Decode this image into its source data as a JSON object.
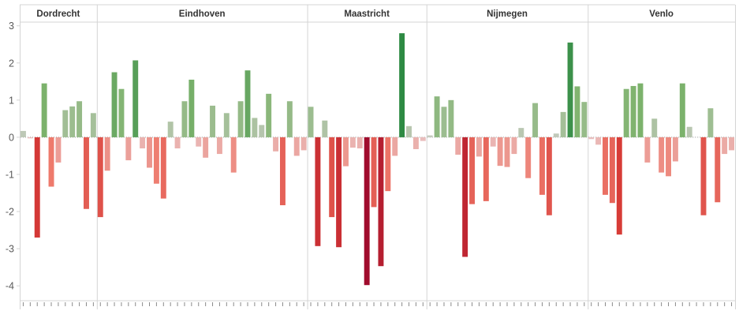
{
  "chart_data": {
    "type": "bar",
    "ylim": [
      -4.4,
      3.1
    ],
    "yticks": [
      3,
      2,
      1,
      0,
      -1,
      -2,
      -3,
      -4
    ],
    "grid": false,
    "panels": [
      {
        "name": "Dordrecht",
        "values": [
          0.17,
          -0.03,
          -2.7,
          1.45,
          -1.33,
          -0.68,
          0.73,
          0.83,
          0.97,
          -1.93,
          0.65
        ]
      },
      {
        "name": "Eindhoven",
        "values": [
          -2.15,
          -0.9,
          1.75,
          1.3,
          -0.62,
          2.07,
          -0.3,
          -0.82,
          -1.25,
          -1.65,
          0.42,
          -0.3,
          0.97,
          1.55,
          -0.25,
          -0.55,
          0.85,
          -0.45,
          0.65,
          -0.95,
          0.97,
          1.8,
          0.52,
          0.33,
          1.17,
          -0.38,
          -1.83,
          0.97,
          -0.5,
          -0.35
        ]
      },
      {
        "name": "Maastricht",
        "values": [
          0.82,
          -2.93,
          0.45,
          -2.15,
          -2.96,
          -0.78,
          -0.28,
          -0.3,
          -3.98,
          -1.88,
          -3.47,
          -1.45,
          -0.5,
          2.8,
          0.3,
          -0.32,
          -0.1
        ]
      },
      {
        "name": "Nijmegen",
        "values": [
          0.05,
          1.1,
          0.82,
          1.0,
          -0.47,
          -3.22,
          -1.8,
          -0.52,
          -1.72,
          -0.25,
          -0.77,
          -0.8,
          -0.45,
          0.25,
          -1.1,
          0.92,
          -1.55,
          -2.1,
          0.1,
          0.68,
          2.55,
          1.37,
          0.95
        ]
      },
      {
        "name": "Venlo",
        "values": [
          -0.05,
          -0.2,
          -1.55,
          -1.77,
          -2.62,
          1.3,
          1.38,
          1.45,
          -0.68,
          0.5,
          -0.95,
          -1.05,
          -0.65,
          1.45,
          0.28,
          0.0,
          -2.1,
          0.78,
          -1.75,
          -0.45,
          -0.35
        ]
      }
    ]
  },
  "colors": {
    "positive": [
      "#c6cbc0",
      "#7fb36e",
      "#2e8a43"
    ],
    "negative": [
      "#e9c2c2",
      "#ee7a6c",
      "#d63a36",
      "#a00c2d"
    ],
    "zero_line": "#8c8c8c",
    "divider": "#d4d4d4",
    "axis_tick": "#8a8a8a"
  }
}
